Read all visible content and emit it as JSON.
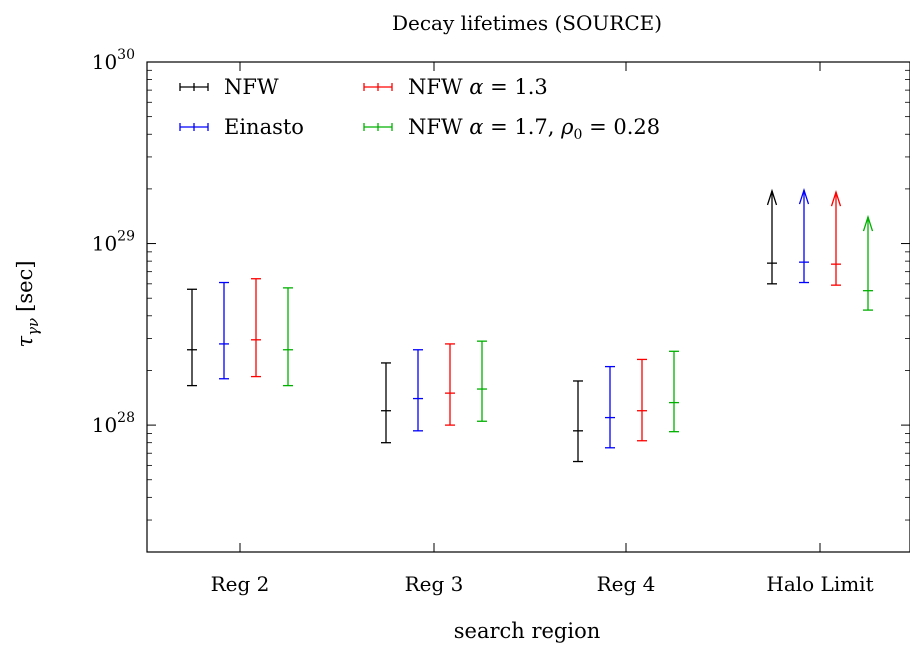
{
  "chart_data": {
    "type": "errorbar",
    "title": "Decay lifetimes (SOURCE)",
    "xlabel": "search region",
    "ylabel": "τ",
    "ylabel_sub": "γν",
    "ylabel_unit": "[sec]",
    "yscale": "log",
    "ylim": [
      2e+27,
      1e+30
    ],
    "ytick_labels": [
      {
        "value": 1e+28,
        "base": "10",
        "exp": "28"
      },
      {
        "value": 1e+29,
        "base": "10",
        "exp": "29"
      },
      {
        "value": 1e+30,
        "base": "10",
        "exp": "30"
      }
    ],
    "categories": [
      "Reg 2",
      "Reg 3",
      "Reg 4",
      "Halo Limit"
    ],
    "legend_position": "top-left",
    "series": [
      {
        "name": "NFW",
        "name_html": "NFW",
        "color": "#000000",
        "values": [
          {
            "y": 2.6e+28,
            "low": 1.65e+28,
            "high": 5.6e+28
          },
          {
            "y": 1.2e+28,
            "low": 8e+27,
            "high": 2.2e+28
          },
          {
            "y": 9.3e+27,
            "low": 6.3e+27,
            "high": 1.75e+28
          },
          {
            "y": 7.8e+28,
            "low": 6e+28,
            "arrow_tip": 1.95e+29
          }
        ]
      },
      {
        "name": "Einasto",
        "name_html": "Einasto",
        "color": "#0000ff",
        "values": [
          {
            "y": 2.8e+28,
            "low": 1.8e+28,
            "high": 6.1e+28
          },
          {
            "y": 1.4e+28,
            "low": 9.3e+27,
            "high": 2.6e+28
          },
          {
            "y": 1.1e+28,
            "low": 7.5e+27,
            "high": 2.1e+28
          },
          {
            "y": 7.9e+28,
            "low": 6.1e+28,
            "arrow_tip": 1.97e+29
          }
        ]
      },
      {
        "name": "NFW α = 1.3",
        "name_html": "NFW <tspan font-style='italic'>α</tspan> = 1.3",
        "color": "#ff0000",
        "values": [
          {
            "y": 2.95e+28,
            "low": 1.85e+28,
            "high": 6.4e+28
          },
          {
            "y": 1.5e+28,
            "low": 1e+28,
            "high": 2.8e+28
          },
          {
            "y": 1.2e+28,
            "low": 8.2e+27,
            "high": 2.3e+28
          },
          {
            "y": 7.7e+28,
            "low": 5.9e+28,
            "arrow_tip": 1.92e+29
          }
        ]
      },
      {
        "name": "NFW α = 1.7, ρ0 = 0.28",
        "name_html": "NFW <tspan font-style='italic'>α</tspan> = 1.7, <tspan font-style='italic'>ρ</tspan><tspan font-size='14' dy='5'>0</tspan><tspan dy='-5'> = 0.28</tspan>",
        "color": "#00b000",
        "values": [
          {
            "y": 2.6e+28,
            "low": 1.65e+28,
            "high": 5.7e+28
          },
          {
            "y": 1.58e+28,
            "low": 1.05e+28,
            "high": 2.9e+28
          },
          {
            "y": 1.33e+28,
            "low": 9.2e+27,
            "high": 2.55e+28
          },
          {
            "y": 5.5e+28,
            "low": 4.3e+28,
            "arrow_tip": 1.4e+29
          }
        ]
      }
    ]
  }
}
